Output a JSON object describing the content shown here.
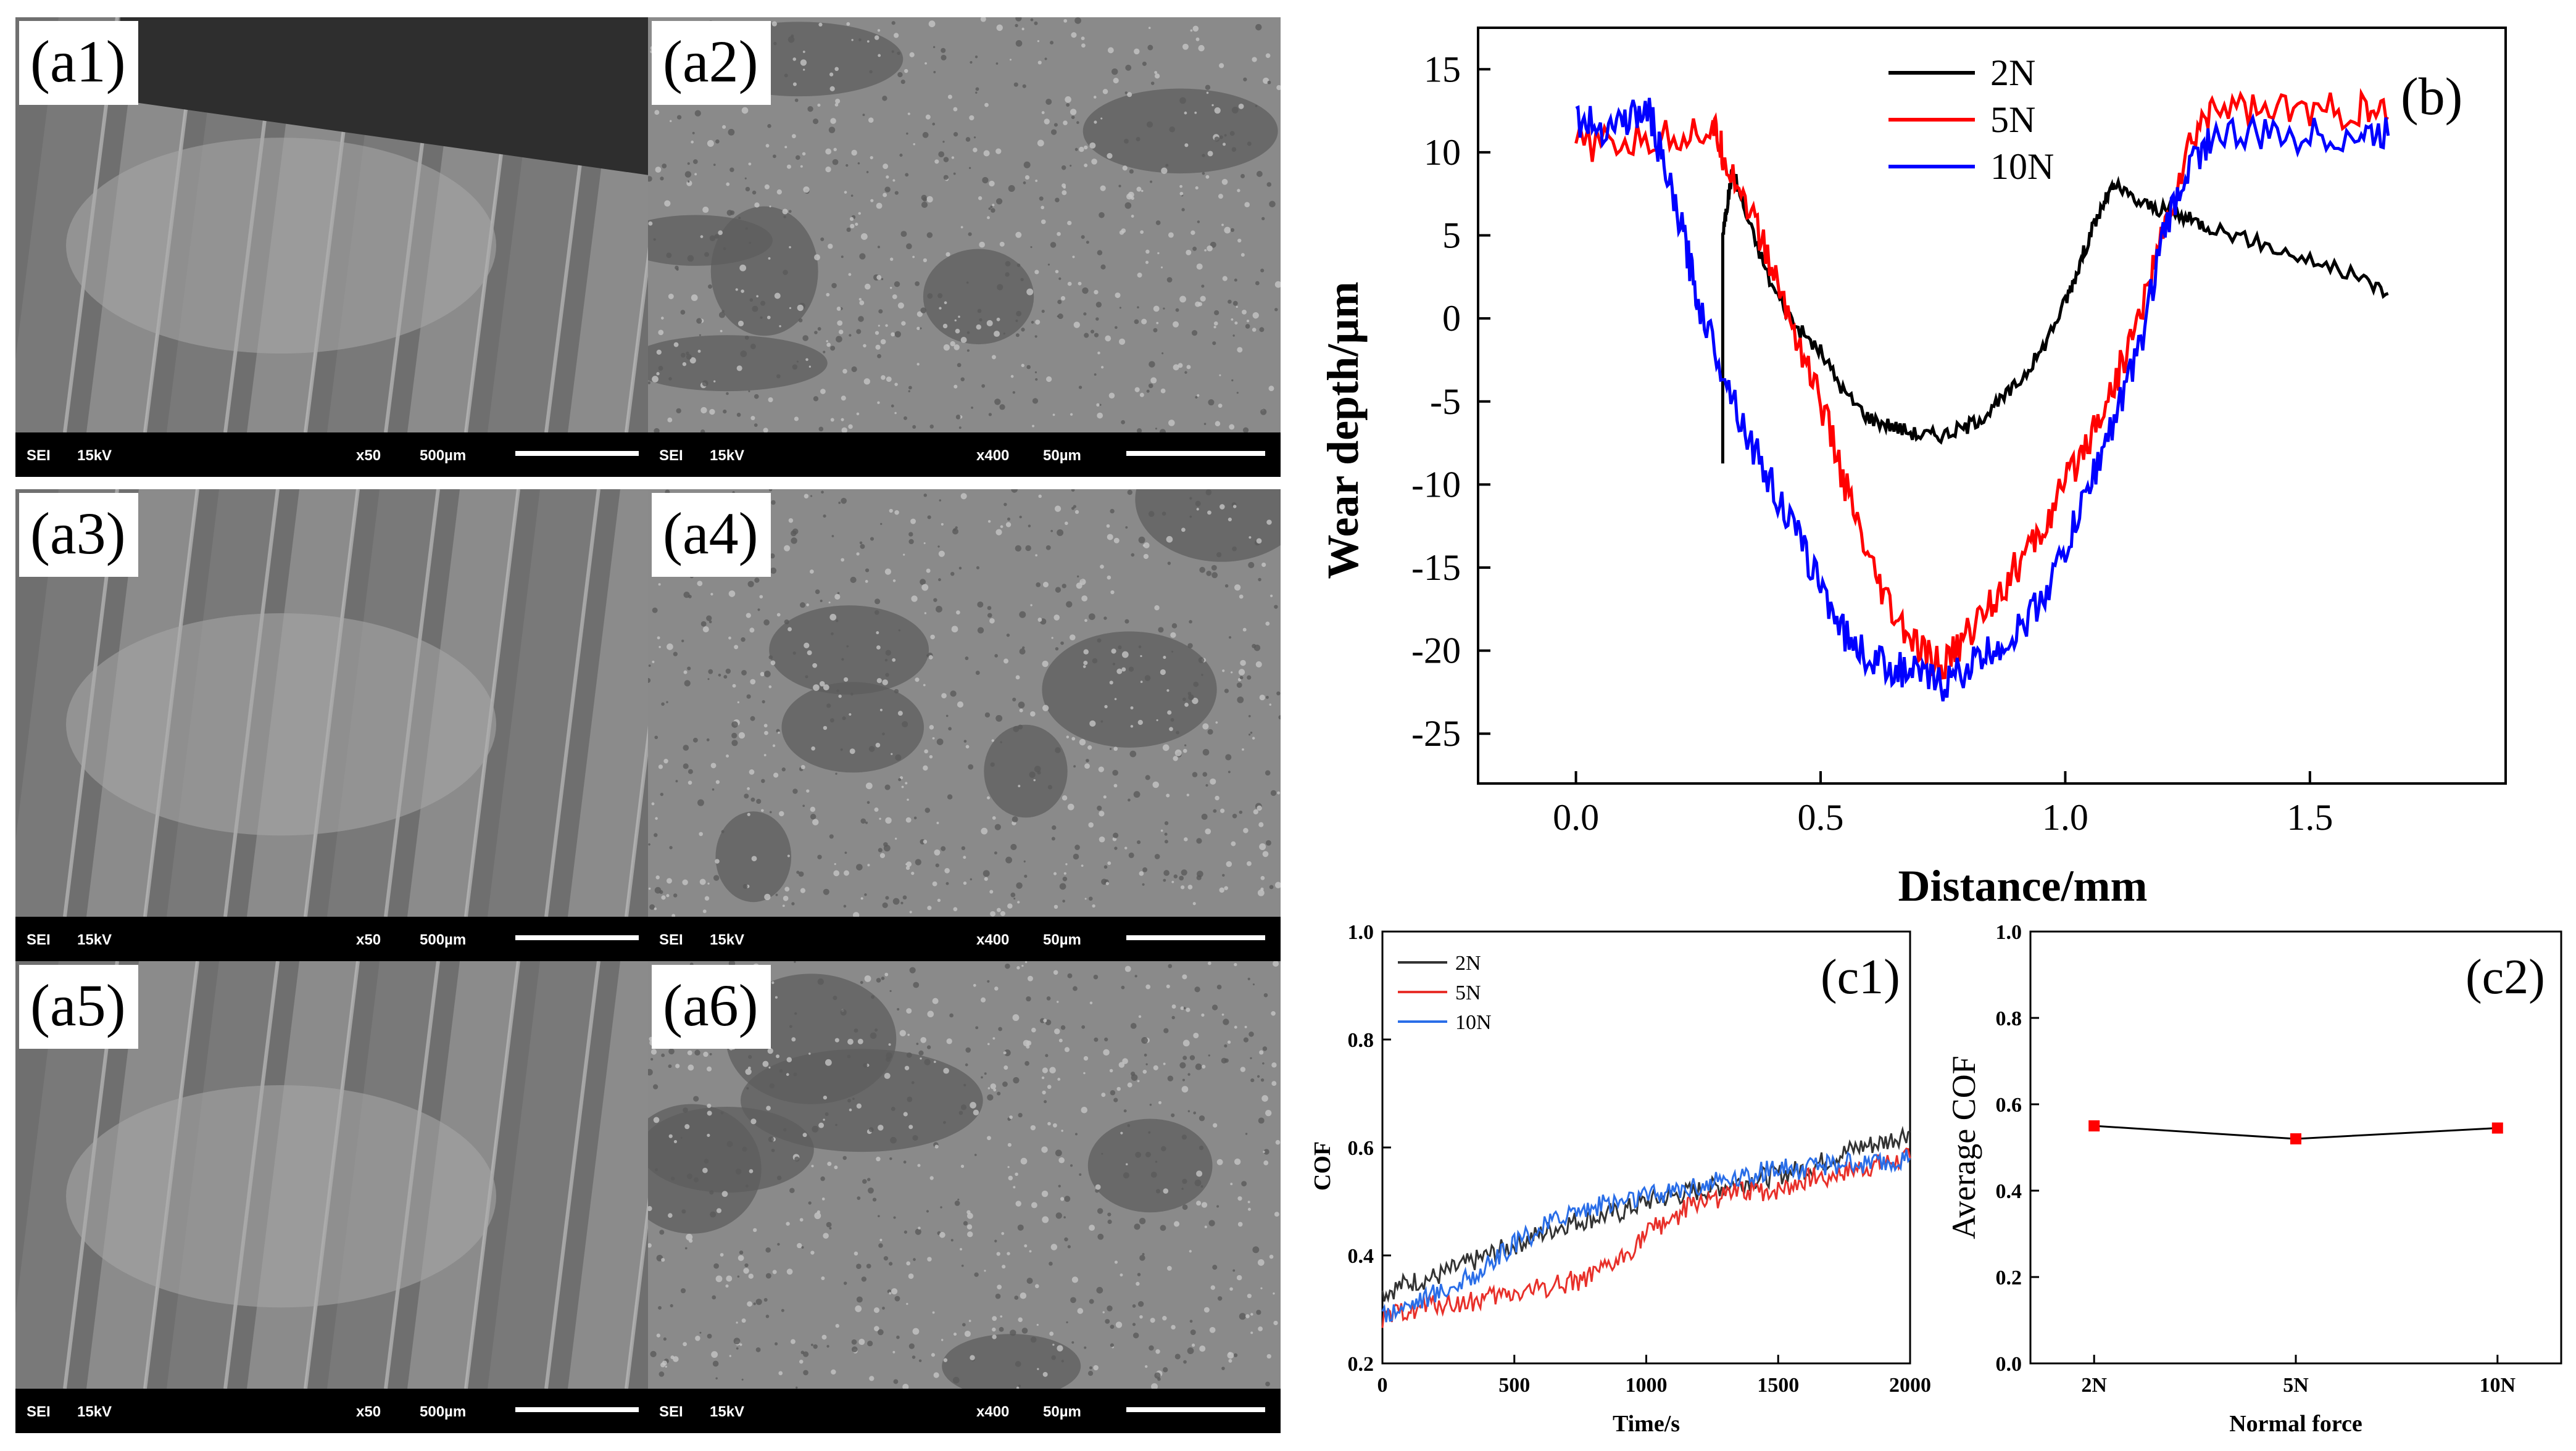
{
  "sem_panels": [
    {
      "id": "a1",
      "label": "(a1)",
      "mode": "SEI",
      "kv": "15kV",
      "mag": "x50",
      "scale": "500µm"
    },
    {
      "id": "a2",
      "label": "(a2)",
      "mode": "SEI",
      "kv": "15kV",
      "mag": "x400",
      "scale": "50µm"
    },
    {
      "id": "a3",
      "label": "(a3)",
      "mode": "SEI",
      "kv": "15kV",
      "mag": "x50",
      "scale": "500µm"
    },
    {
      "id": "a4",
      "label": "(a4)",
      "mode": "SEI",
      "kv": "15kV",
      "mag": "x400",
      "scale": "50µm"
    },
    {
      "id": "a5",
      "label": "(a5)",
      "mode": "SEI",
      "kv": "15kV",
      "mag": "x50",
      "scale": "500µm"
    },
    {
      "id": "a6",
      "label": "(a6)",
      "mode": "SEI",
      "kv": "15kV",
      "mag": "x400",
      "scale": "50µm"
    }
  ],
  "chart_data": [
    {
      "id": "b",
      "type": "line",
      "panel_label": "(b)",
      "xlabel": "Distance/mm",
      "ylabel": "Wear depth/µm",
      "xlim": [
        -0.2,
        1.9
      ],
      "ylim": [
        -28,
        17.5
      ],
      "xticks": [
        0.0,
        0.5,
        1.0,
        1.5
      ],
      "xtick_labels": [
        "0.0",
        "0.5",
        "1.0",
        "1.5"
      ],
      "yticks": [
        15,
        10,
        5,
        0,
        -5,
        -10,
        -15,
        -20,
        -25
      ],
      "ytick_labels": [
        "15",
        "10",
        "5",
        "0",
        "-5",
        "-10",
        "-15",
        "-20",
        "-25"
      ],
      "legend": "top-center",
      "series": [
        {
          "name": "2N",
          "color": "#000000",
          "x": [
            0.3,
            0.3,
            0.31,
            0.32,
            0.35,
            0.4,
            0.45,
            0.5,
            0.55,
            0.6,
            0.65,
            0.7,
            0.75,
            0.8,
            0.85,
            0.9,
            0.95,
            1.0,
            1.02,
            1.05,
            1.08,
            1.1,
            1.15,
            1.2,
            1.25,
            1.3,
            1.4,
            1.5,
            1.6,
            1.66
          ],
          "y": [
            -8.5,
            5,
            7,
            9,
            6,
            2,
            -0.5,
            -2,
            -4.5,
            -6,
            -6.5,
            -7,
            -7,
            -6.5,
            -5.5,
            -4,
            -2,
            1,
            2.5,
            5,
            7,
            8,
            7,
            6.5,
            6,
            5.5,
            4.5,
            3.5,
            2.5,
            1.5
          ]
        },
        {
          "name": "5N",
          "color": "#ff0000",
          "x": [
            0.0,
            0.1,
            0.2,
            0.28,
            0.3,
            0.35,
            0.4,
            0.45,
            0.5,
            0.55,
            0.6,
            0.65,
            0.7,
            0.75,
            0.8,
            0.85,
            0.9,
            0.95,
            1.0,
            1.05,
            1.1,
            1.15,
            1.2,
            1.25,
            1.3,
            1.4,
            1.5,
            1.6,
            1.66
          ],
          "y": [
            10.5,
            10.5,
            11,
            11.5,
            10,
            7,
            3,
            -1,
            -5,
            -10,
            -15,
            -18,
            -20,
            -21,
            -19,
            -17,
            -15,
            -13,
            -10,
            -7,
            -4,
            0,
            5,
            10,
            13,
            12.5,
            12.5,
            12.5,
            12
          ]
        },
        {
          "name": "10N",
          "color": "#0000ff",
          "x": [
            0.0,
            0.05,
            0.1,
            0.15,
            0.18,
            0.22,
            0.25,
            0.3,
            0.35,
            0.4,
            0.45,
            0.5,
            0.55,
            0.6,
            0.65,
            0.7,
            0.75,
            0.8,
            0.85,
            0.9,
            0.95,
            1.0,
            1.05,
            1.1,
            1.15,
            1.2,
            1.25,
            1.3,
            1.4,
            1.5,
            1.6,
            1.66
          ],
          "y": [
            12,
            11.5,
            12,
            12.5,
            9,
            5,
            1,
            -3,
            -7,
            -10,
            -13,
            -16,
            -19,
            -20.5,
            -21,
            -21.5,
            -22,
            -21,
            -20,
            -19,
            -17,
            -14,
            -10,
            -6,
            -2,
            5,
            9,
            11,
            11,
            11,
            11,
            11
          ]
        }
      ]
    },
    {
      "id": "c1",
      "type": "line",
      "panel_label": "(c1)",
      "xlabel": "Time/s",
      "ylabel": "COF",
      "xlim": [
        0,
        2000
      ],
      "ylim": [
        0.2,
        1.0
      ],
      "xticks": [
        0,
        500,
        1000,
        1500,
        2000
      ],
      "xtick_labels": [
        "0",
        "500",
        "1000",
        "1500",
        "2000"
      ],
      "yticks": [
        0.2,
        0.4,
        0.6,
        0.8,
        1.0
      ],
      "ytick_labels": [
        "0.2",
        "0.4",
        "0.6",
        "0.8",
        "1.0"
      ],
      "legend": "top-left",
      "series": [
        {
          "name": "2N",
          "color": "#333333",
          "x": [
            0,
            100,
            200,
            300,
            400,
            500,
            600,
            700,
            800,
            900,
            1000,
            1100,
            1200,
            1300,
            1400,
            1500,
            1600,
            1700,
            1800,
            1900,
            2000
          ],
          "y": [
            0.33,
            0.35,
            0.36,
            0.38,
            0.4,
            0.42,
            0.44,
            0.46,
            0.47,
            0.48,
            0.5,
            0.51,
            0.52,
            0.53,
            0.54,
            0.55,
            0.56,
            0.58,
            0.6,
            0.61,
            0.63
          ]
        },
        {
          "name": "5N",
          "color": "#e8302a",
          "x": [
            0,
            100,
            200,
            300,
            400,
            500,
            600,
            700,
            800,
            900,
            1000,
            1100,
            1200,
            1300,
            1400,
            1500,
            1600,
            1700,
            1800,
            1900,
            2000
          ],
          "y": [
            0.28,
            0.3,
            0.31,
            0.31,
            0.32,
            0.33,
            0.34,
            0.35,
            0.36,
            0.39,
            0.44,
            0.47,
            0.5,
            0.51,
            0.52,
            0.52,
            0.54,
            0.55,
            0.56,
            0.57,
            0.58
          ]
        },
        {
          "name": "10N",
          "color": "#2a6ee8",
          "x": [
            0,
            100,
            200,
            300,
            400,
            500,
            600,
            700,
            800,
            900,
            1000,
            1100,
            1200,
            1300,
            1400,
            1500,
            1600,
            1700,
            1800,
            1900,
            2000
          ],
          "y": [
            0.29,
            0.31,
            0.33,
            0.35,
            0.38,
            0.42,
            0.45,
            0.48,
            0.49,
            0.5,
            0.51,
            0.52,
            0.53,
            0.54,
            0.55,
            0.56,
            0.56,
            0.57,
            0.57,
            0.57,
            0.58
          ]
        }
      ]
    },
    {
      "id": "c2",
      "type": "line",
      "panel_label": "(c2)",
      "xlabel": "Normal force",
      "ylabel": "Average COF",
      "categories": [
        "2N",
        "5N",
        "10N"
      ],
      "values": [
        0.55,
        0.52,
        0.545
      ],
      "ylim": [
        0.0,
        1.0
      ],
      "yticks": [
        0.0,
        0.2,
        0.4,
        0.6,
        0.8,
        1.0
      ],
      "ytick_labels": [
        "0.0",
        "0.2",
        "0.4",
        "0.6",
        "0.8",
        "1.0"
      ],
      "line_color": "#000000",
      "marker_color": "#ff0000"
    }
  ]
}
